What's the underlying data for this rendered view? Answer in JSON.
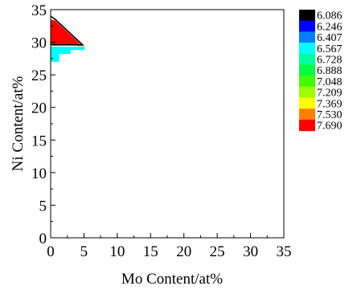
{
  "chart_data": {
    "type": "heatmap",
    "xlabel": "Mo Content/at%",
    "ylabel": "Ni Content/at%",
    "xlim": [
      0,
      35
    ],
    "ylim": [
      0,
      35
    ],
    "xticks": [
      0,
      5,
      10,
      15,
      20,
      25,
      30,
      35
    ],
    "yticks": [
      0,
      5,
      10,
      15,
      20,
      25,
      30,
      35
    ],
    "grid": false,
    "legend": {
      "placement": "right",
      "levels": [
        {
          "label": "6.086",
          "color": "#000000"
        },
        {
          "label": "6.246",
          "color": "#0000ff"
        },
        {
          "label": "6.407",
          "color": "#0080ff"
        },
        {
          "label": "6.567",
          "color": "#00ffff"
        },
        {
          "label": "6.728",
          "color": "#00ff9f"
        },
        {
          "label": "6.888",
          "color": "#00ff40"
        },
        {
          "label": "7.048",
          "color": "#40ff00"
        },
        {
          "label": "7.209",
          "color": "#9fff00"
        },
        {
          "label": "7.369",
          "color": "#ffff00"
        },
        {
          "label": "7.530",
          "color": "#ff8000"
        },
        {
          "label": "7.690",
          "color": "#ff0000"
        }
      ]
    },
    "regions": [
      {
        "level": "7.690",
        "polygon": [
          [
            0,
            29.6
          ],
          [
            4.6,
            29.6
          ],
          [
            0.7,
            33.3
          ],
          [
            0,
            33.5
          ]
        ]
      },
      {
        "level": "7.530",
        "polygon": [
          [
            4.0,
            29.4
          ],
          [
            5.0,
            29.4
          ],
          [
            4.6,
            29.8
          ],
          [
            4.0,
            29.8
          ]
        ]
      },
      {
        "level": "6.567",
        "polygon": [
          [
            0,
            27.0
          ],
          [
            1.3,
            27.0
          ],
          [
            1.3,
            28.2
          ],
          [
            3.0,
            28.2
          ],
          [
            3.0,
            28.8
          ],
          [
            5.1,
            28.8
          ],
          [
            5.1,
            29.3
          ],
          [
            0,
            29.3
          ]
        ]
      },
      {
        "level": "6.086",
        "polyline": [
          [
            0,
            34.0
          ],
          [
            0.7,
            33.5
          ],
          [
            4.8,
            29.6
          ],
          [
            0,
            29.6
          ]
        ]
      }
    ]
  }
}
